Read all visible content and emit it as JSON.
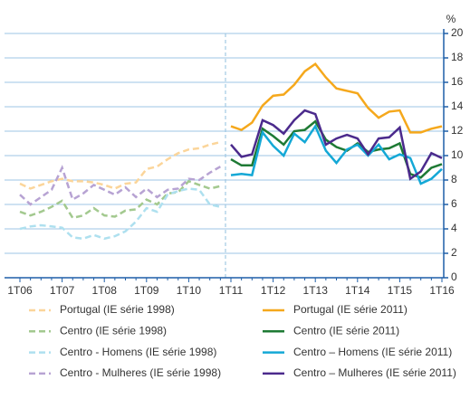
{
  "chart_data": {
    "type": "line",
    "ylabel": "%",
    "categories": [
      "1T06",
      null,
      null,
      null,
      "1T07",
      null,
      null,
      null,
      "1T08",
      null,
      null,
      null,
      "1T09",
      null,
      null,
      null,
      "1T10",
      null,
      null,
      null,
      "1T11",
      null,
      null,
      null,
      "1T12",
      null,
      null,
      null,
      "1T13",
      null,
      null,
      null,
      "1T14",
      null,
      null,
      null,
      "1T15",
      null,
      null,
      null,
      "1T16"
    ],
    "ylim": [
      0,
      20
    ],
    "yticks": [
      0,
      2,
      4,
      6,
      8,
      10,
      12,
      14,
      16,
      18,
      20
    ],
    "grid": true,
    "series": [
      {
        "name": "Portugal (IE série 1998)",
        "color": "#fbd59a",
        "dashed": true,
        "values": [
          7.7,
          7.3,
          7.6,
          7.9,
          8.1,
          7.9,
          7.9,
          7.8,
          7.6,
          7.3,
          7.7,
          7.8,
          8.9,
          9.1,
          9.7,
          10.2,
          10.5,
          10.6,
          10.9,
          11.1,
          null,
          null,
          null,
          null,
          null,
          null,
          null,
          null,
          null,
          null,
          null,
          null,
          null,
          null,
          null,
          null,
          null,
          null,
          null,
          null,
          null
        ]
      },
      {
        "name": "Portugal (IE série 2011)",
        "color": "#f5a81c",
        "dashed": false,
        "values": [
          null,
          null,
          null,
          null,
          null,
          null,
          null,
          null,
          null,
          null,
          null,
          null,
          null,
          null,
          null,
          null,
          null,
          null,
          null,
          null,
          12.4,
          12.1,
          12.7,
          14.1,
          14.9,
          15.0,
          15.8,
          16.9,
          17.5,
          16.4,
          15.5,
          15.3,
          15.1,
          13.9,
          13.1,
          13.6,
          13.7,
          11.9,
          11.9,
          12.2,
          12.4
        ]
      },
      {
        "name": "Centro (IE série 1998)",
        "color": "#a3c98f",
        "dashed": true,
        "values": [
          5.4,
          5.1,
          5.4,
          5.8,
          6.3,
          4.9,
          5.1,
          5.7,
          5.1,
          5.0,
          5.5,
          5.6,
          6.4,
          6.0,
          6.9,
          7.0,
          7.9,
          7.6,
          7.3,
          7.5,
          null,
          null,
          null,
          null,
          null,
          null,
          null,
          null,
          null,
          null,
          null,
          null,
          null,
          null,
          null,
          null,
          null,
          null,
          null,
          null,
          null
        ]
      },
      {
        "name": "Centro (IE série 2011)",
        "color": "#1e7a34",
        "dashed": false,
        "values": [
          null,
          null,
          null,
          null,
          null,
          null,
          null,
          null,
          null,
          null,
          null,
          null,
          null,
          null,
          null,
          null,
          null,
          null,
          null,
          null,
          9.7,
          9.2,
          9.2,
          12.2,
          11.6,
          10.9,
          12.0,
          12.1,
          12.8,
          11.3,
          10.7,
          10.4,
          11.0,
          10.3,
          10.5,
          10.6,
          11.0,
          8.5,
          8.2,
          9.0,
          9.3
        ]
      },
      {
        "name": "Centro - Homens (IE série 1998)",
        "color": "#aee0ef",
        "dashed": true,
        "values": [
          4.0,
          4.2,
          4.3,
          4.2,
          4.1,
          3.3,
          3.2,
          3.5,
          3.2,
          3.4,
          3.8,
          4.6,
          5.7,
          5.4,
          6.8,
          7.1,
          7.3,
          7.2,
          6.0,
          5.8,
          null,
          null,
          null,
          null,
          null,
          null,
          null,
          null,
          null,
          null,
          null,
          null,
          null,
          null,
          null,
          null,
          null,
          null,
          null,
          null,
          null
        ]
      },
      {
        "name": "Centro – Homens (IE série 2011)",
        "color": "#14a8d6",
        "dashed": false,
        "values": [
          null,
          null,
          null,
          null,
          null,
          null,
          null,
          null,
          null,
          null,
          null,
          null,
          null,
          null,
          null,
          null,
          null,
          null,
          null,
          null,
          8.4,
          8.5,
          8.4,
          11.9,
          10.8,
          10.0,
          11.8,
          11.1,
          12.4,
          10.4,
          9.4,
          10.5,
          10.9,
          10.0,
          10.9,
          9.7,
          10.1,
          9.8,
          7.7,
          8.1,
          8.9
        ]
      },
      {
        "name": "Centro - Mulheres (IE série 1998)",
        "color": "#b7a3d3",
        "dashed": true,
        "values": [
          6.8,
          6.0,
          6.6,
          7.2,
          9.0,
          6.4,
          6.9,
          7.6,
          7.2,
          6.8,
          7.4,
          6.6,
          7.3,
          6.6,
          7.2,
          7.3,
          8.1,
          8.0,
          8.6,
          9.1,
          null,
          null,
          null,
          null,
          null,
          null,
          null,
          null,
          null,
          null,
          null,
          null,
          null,
          null,
          null,
          null,
          null,
          null,
          null,
          null,
          null
        ]
      },
      {
        "name": "Centro – Mulheres (IE série 2011)",
        "color": "#4b2a8c",
        "dashed": false,
        "values": [
          null,
          null,
          null,
          null,
          null,
          null,
          null,
          null,
          null,
          null,
          null,
          null,
          null,
          null,
          null,
          null,
          null,
          null,
          null,
          null,
          10.9,
          9.9,
          10.1,
          12.9,
          12.5,
          11.8,
          12.9,
          13.7,
          13.4,
          10.9,
          11.4,
          11.7,
          11.4,
          10.1,
          11.4,
          11.5,
          12.3,
          8.1,
          8.7,
          10.2,
          9.8
        ]
      }
    ]
  }
}
